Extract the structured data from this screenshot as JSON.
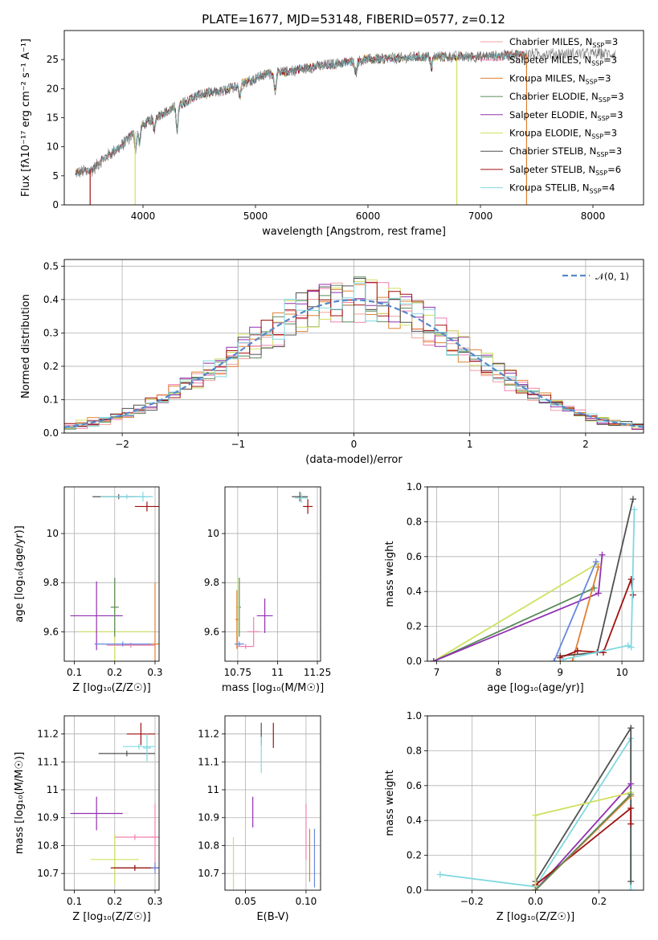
{
  "figure_title": "PLATE=1677, MJD=53148, FIBERID=0577, z=0.12",
  "colors": {
    "chabrier_miles": "#f0a0a0",
    "salpeter_miles": "#f080b0",
    "kroupa_miles": "#e08030",
    "chabrier_elodie": "#5a8a5a",
    "salpeter_elodie": "#9030b0",
    "kroupa_elodie": "#d0e060",
    "chabrier_stelib": "#505050",
    "salpeter_stelib": "#a01010",
    "kroupa_stelib": "#80d8e0",
    "gaussian": "#5588cc",
    "blue_extra": "#6688dd"
  },
  "chart_data": [
    {
      "id": "spectrum",
      "type": "line",
      "title": "PLATE=1677, MJD=53148, FIBERID=0577, z=0.12",
      "xlabel": "wavelength [Angstrom, rest frame]",
      "ylabel": "Flux [fλ10⁻¹⁷ erg cm⁻² s⁻¹ A⁻¹]",
      "xlim": [
        3300,
        8450
      ],
      "ylim": [
        0,
        30
      ],
      "xticks": [
        "4000",
        "5000",
        "6000",
        "7000",
        "8000"
      ],
      "yticks": [
        "0",
        "5",
        "10",
        "15",
        "20",
        "25"
      ],
      "legend_position": "top-right",
      "legend": [
        "Chabrier MILES, N_SSP=3",
        "Salpeter MILES, N_SSP=3",
        "Kroupa MILES, N_SSP=3",
        "Chabrier ELODIE, N_SSP=3",
        "Salpeter ELODIE, N_SSP=3",
        "Kroupa ELODIE, N_SSP=3",
        "Chabrier STELIB, N_SSP=3",
        "Salpeter STELIB, N_SSP=6",
        "Kroupa STELIB, N_SSP=4"
      ],
      "data_range": [
        3400,
        8200
      ],
      "continuum_points": [
        [
          3400,
          5.5
        ],
        [
          3550,
          6
        ],
        [
          3650,
          8
        ],
        [
          3800,
          10
        ],
        [
          3950,
          13
        ],
        [
          4100,
          15
        ],
        [
          4300,
          17
        ],
        [
          4500,
          19
        ],
        [
          4700,
          19.5
        ],
        [
          4900,
          21
        ],
        [
          5100,
          22.5
        ],
        [
          5300,
          23
        ],
        [
          5600,
          24
        ],
        [
          6000,
          25
        ],
        [
          6500,
          25.5
        ],
        [
          7000,
          25.5
        ],
        [
          7500,
          26
        ],
        [
          8000,
          26
        ],
        [
          8200,
          26
        ]
      ],
      "absorption_lines": [
        [
          3934,
          3
        ],
        [
          3968,
          2.5
        ],
        [
          4101,
          2
        ],
        [
          4304,
          4
        ],
        [
          4861,
          2
        ],
        [
          5175,
          3
        ],
        [
          5893,
          2
        ],
        [
          6563,
          2
        ]
      ],
      "model_dropouts": [
        {
          "x": 3530,
          "series": "Salpeter STELIB"
        },
        {
          "x": 3930,
          "series": "Kroupa ELODIE"
        },
        {
          "x": 6790,
          "series": "Kroupa ELODIE"
        },
        {
          "x": 7410,
          "series": "Kroupa MILES"
        }
      ]
    },
    {
      "id": "residuals",
      "type": "histogram",
      "xlabel": "(data-model)/error",
      "ylabel": "Normed distribution",
      "xlim": [
        -2.5,
        2.5
      ],
      "ylim": [
        0,
        0.52
      ],
      "xticks": [
        "−2",
        "−1",
        "0",
        "1",
        "2"
      ],
      "yticks": [
        "0.0",
        "0.1",
        "0.2",
        "0.3",
        "0.4",
        "0.5"
      ],
      "bin_width": 0.1,
      "legend": [
        "𝒩(0, 1)"
      ],
      "legend_position": "top-right",
      "gaussian": {
        "mean": 0,
        "sigma": 1
      }
    },
    {
      "id": "age_vs_Z",
      "type": "errorbar",
      "xlabel": "Z [log₁₀(Z/Z☉)]",
      "ylabel": "age  [log₁₀(age/yr)]",
      "xlim": [
        0.075,
        0.31
      ],
      "ylim": [
        9.48,
        10.19
      ],
      "xticks": [
        0.1,
        0.2,
        0.3
      ],
      "yticks": [
        9.6,
        9.8,
        10.0
      ],
      "points": [
        {
          "x": 0.21,
          "y": 10.15,
          "xerr": 0.065,
          "yerr": 0.01,
          "series": "chabrier_stelib"
        },
        {
          "x": 0.23,
          "y": 10.15,
          "xerr": 0.065,
          "yerr": 0.01,
          "series": "kroupa_stelib"
        },
        {
          "x": 0.27,
          "y": 10.15,
          "xerr": 0.02,
          "yerr": 0.02,
          "series": "kroupa_stelib"
        },
        {
          "x": 0.28,
          "y": 10.11,
          "xerr": 0.03,
          "yerr": 0.02,
          "series": "salpeter_stelib"
        },
        {
          "x": 0.2,
          "y": 9.6,
          "xerr": 0.09,
          "yerr": 0.2,
          "series": "kroupa_elodie"
        },
        {
          "x": 0.155,
          "y": 9.665,
          "xerr": 0.065,
          "yerr": 0.14,
          "series": "salpeter_elodie"
        },
        {
          "x": 0.3,
          "y": 9.55,
          "xerr": 0.075,
          "yerr": 0.25,
          "series": "kroupa_miles"
        },
        {
          "x": 0.24,
          "y": 9.545,
          "xerr": 0.06,
          "yerr": 0.01,
          "series": "salpeter_miles"
        },
        {
          "x": 0.22,
          "y": 9.55,
          "xerr": 0.07,
          "yerr": 0.01,
          "series": "blue_extra"
        },
        {
          "x": 0.2,
          "y": 9.7,
          "xerr": 0.01,
          "yerr": 0.12,
          "series": "chabrier_elodie"
        }
      ]
    },
    {
      "id": "age_vs_mass",
      "type": "errorbar",
      "xlabel": "mass [log₁₀(M/M☉)]",
      "xlim": [
        10.67,
        11.27
      ],
      "ylim": [
        9.48,
        10.19
      ],
      "xticks": [
        10.75,
        11.0,
        11.25
      ],
      "yticks": [
        9.6,
        9.8,
        10.0
      ],
      "points": [
        {
          "x": 11.14,
          "y": 10.15,
          "xerr": 0.05,
          "yerr": 0.02,
          "series": "chabrier_stelib"
        },
        {
          "x": 11.15,
          "y": 10.145,
          "xerr": 0.04,
          "yerr": 0.02,
          "series": "kroupa_stelib"
        },
        {
          "x": 11.19,
          "y": 10.11,
          "xerr": 0.03,
          "yerr": 0.03,
          "series": "salpeter_stelib"
        },
        {
          "x": 10.92,
          "y": 9.665,
          "xerr": 0.05,
          "yerr": 0.07,
          "series": "salpeter_elodie"
        },
        {
          "x": 10.85,
          "y": 9.6,
          "xerr": 0.04,
          "yerr": 0.06,
          "series": "salpeter_miles"
        },
        {
          "x": 10.76,
          "y": 9.7,
          "xerr": 0.01,
          "yerr": 0.12,
          "series": "chabrier_elodie"
        },
        {
          "x": 10.75,
          "y": 9.7,
          "xerr": 0.01,
          "yerr": 0.12,
          "series": "kroupa_elodie"
        },
        {
          "x": 10.745,
          "y": 9.65,
          "xerr": 0.01,
          "yerr": 0.12,
          "series": "kroupa_miles"
        },
        {
          "x": 10.76,
          "y": 9.55,
          "xerr": 0.03,
          "yerr": 0.01,
          "series": "blue_extra"
        },
        {
          "x": 10.8,
          "y": 9.54,
          "xerr": 0.05,
          "yerr": 0.01,
          "series": "salpeter_miles"
        }
      ]
    },
    {
      "id": "weight_vs_age",
      "type": "line",
      "xlabel": "age  [log₁₀(age/yr)]",
      "ylabel": "mass weight",
      "xlim": [
        6.85,
        10.35
      ],
      "ylim": [
        0,
        1
      ],
      "xticks": [
        7,
        8,
        9,
        10
      ],
      "yticks": [
        0.0,
        0.2,
        0.4,
        0.6,
        0.8,
        1.0
      ],
      "series": [
        {
          "name": "kroupa_elodie",
          "x": [
            6.95,
            9.6
          ],
          "y": [
            0.0,
            0.56
          ]
        },
        {
          "name": "chabrier_elodie",
          "x": [
            6.95,
            9.55
          ],
          "y": [
            0.0,
            0.42
          ]
        },
        {
          "name": "salpeter_elodie",
          "x": [
            6.95,
            9.62,
            9.68
          ],
          "y": [
            0.0,
            0.39,
            0.61
          ]
        },
        {
          "name": "blue_extra",
          "x": [
            8.9,
            9.58
          ],
          "y": [
            0.0,
            0.57
          ]
        },
        {
          "name": "kroupa_miles",
          "x": [
            9.2,
            9.62
          ],
          "y": [
            0.0,
            0.54
          ]
        },
        {
          "name": "chabrier_stelib",
          "x": [
            9.0,
            9.6,
            10.18
          ],
          "y": [
            0.03,
            0.05,
            0.93
          ]
        },
        {
          "name": "salpeter_stelib",
          "x": [
            9.0,
            9.28,
            9.7,
            10.15,
            10.18
          ],
          "y": [
            0.02,
            0.06,
            0.05,
            0.47,
            0.38
          ]
        },
        {
          "name": "kroupa_stelib",
          "x": [
            9.05,
            10.1,
            10.15,
            10.2
          ],
          "y": [
            0.01,
            0.09,
            0.08,
            0.87
          ]
        }
      ]
    },
    {
      "id": "mass_vs_Z",
      "type": "errorbar",
      "xlabel": "Z [log₁₀(Z/Z☉)]",
      "ylabel": "mass [log₁₀(M/M☉)]",
      "xlim": [
        0.075,
        0.31
      ],
      "ylim": [
        10.64,
        11.265
      ],
      "xticks": [
        0.1,
        0.2,
        0.3
      ],
      "yticks": [
        10.7,
        10.8,
        10.9,
        11.0,
        11.1,
        11.2
      ],
      "points": [
        {
          "x": 0.265,
          "y": 11.2,
          "xerr": 0.035,
          "yerr": 0.04,
          "series": "salpeter_stelib"
        },
        {
          "x": 0.23,
          "y": 11.13,
          "xerr": 0.07,
          "yerr": 0.01,
          "series": "chabrier_stelib"
        },
        {
          "x": 0.26,
          "y": 11.155,
          "xerr": 0.04,
          "yerr": 0.01,
          "series": "kroupa_stelib"
        },
        {
          "x": 0.28,
          "y": 11.15,
          "xerr": 0.01,
          "yerr": 0.05,
          "series": "kroupa_stelib"
        },
        {
          "x": 0.155,
          "y": 10.915,
          "xerr": 0.065,
          "yerr": 0.06,
          "series": "salpeter_elodie"
        },
        {
          "x": 0.3,
          "y": 10.83,
          "xerr": 0.01,
          "yerr": 0.12,
          "series": "salpeter_miles"
        },
        {
          "x": 0.25,
          "y": 10.83,
          "xerr": 0.05,
          "yerr": 0.01,
          "series": "salpeter_miles"
        },
        {
          "x": 0.2,
          "y": 10.75,
          "xerr": 0.06,
          "yerr": 0.09,
          "series": "kroupa_elodie"
        },
        {
          "x": 0.25,
          "y": 10.72,
          "xerr": 0.05,
          "yerr": 0.01,
          "series": "chabrier_elodie"
        },
        {
          "x": 0.25,
          "y": 10.72,
          "xerr": 0.06,
          "yerr": 0.01,
          "series": "salpeter_stelib"
        },
        {
          "x": 0.3,
          "y": 10.72,
          "xerr": 0.01,
          "yerr": 0.02,
          "series": "blue_extra"
        }
      ]
    },
    {
      "id": "mass_vs_ebv",
      "type": "errorbar",
      "xlabel": "E(B-V)",
      "xlim": [
        0.033,
        0.112
      ],
      "ylim": [
        10.64,
        11.265
      ],
      "xticks": [
        0.05,
        0.1
      ],
      "xtick_labels": [
        "0.05",
        "0.10"
      ],
      "yticks": [
        10.7,
        10.8,
        10.9,
        11.0,
        11.1,
        11.2
      ],
      "points": [
        {
          "x": 0.063,
          "y": 11.2,
          "yerr": 0.04,
          "series": "chabrier_stelib"
        },
        {
          "x": 0.073,
          "y": 11.195,
          "yerr": 0.045,
          "series": "salpeter_stelib"
        },
        {
          "x": 0.063,
          "y": 11.125,
          "yerr": 0.065,
          "series": "kroupa_stelib"
        },
        {
          "x": 0.056,
          "y": 10.92,
          "yerr": 0.055,
          "series": "salpeter_elodie"
        },
        {
          "x": 0.1,
          "y": 10.85,
          "yerr": 0.1,
          "series": "salpeter_miles"
        },
        {
          "x": 0.103,
          "y": 10.765,
          "yerr": 0.095,
          "series": "kroupa_miles"
        },
        {
          "x": 0.107,
          "y": 10.755,
          "yerr": 0.105,
          "series": "blue_extra"
        },
        {
          "x": 0.04,
          "y": 10.73,
          "yerr": 0.1,
          "series": "kroupa_elodie"
        }
      ]
    },
    {
      "id": "weight_vs_Z",
      "type": "line",
      "xlabel": "Z [log₁₀(Z/Z☉)]",
      "ylabel": "mass weight",
      "xlim": [
        -0.34,
        0.34
      ],
      "ylim": [
        0,
        1
      ],
      "xticks": [
        -0.2,
        0.0,
        0.2
      ],
      "xtick_labels": [
        "−0.2",
        "0.0",
        "0.2"
      ],
      "yticks": [
        0.0,
        0.2,
        0.4,
        0.6,
        0.8,
        1.0
      ],
      "series": [
        {
          "name": "kroupa_stelib",
          "x": [
            -0.3,
            0.0,
            0.3,
            0.3
          ],
          "y": [
            0.09,
            0.02,
            0.87,
            0.0
          ]
        },
        {
          "name": "chabrier_stelib",
          "x": [
            0.0,
            0.3,
            0.3
          ],
          "y": [
            0.05,
            0.93,
            0.05
          ]
        },
        {
          "name": "salpeter_elodie",
          "x": [
            0.0,
            0.3
          ],
          "y": [
            0.0,
            0.61
          ]
        },
        {
          "name": "salpeter_stelib",
          "x": [
            0.0,
            0.3,
            0.3
          ],
          "y": [
            0.03,
            0.47,
            0.38
          ]
        },
        {
          "name": "kroupa_elodie",
          "x": [
            0.0,
            0.0,
            0.3
          ],
          "y": [
            0.0,
            0.43,
            0.56
          ]
        },
        {
          "name": "kroupa_miles",
          "x": [
            0.0,
            0.3
          ],
          "y": [
            0.0,
            0.54
          ]
        },
        {
          "name": "chabrier_elodie",
          "x": [
            0.0,
            0.3
          ],
          "y": [
            0.0,
            0.55
          ]
        }
      ]
    }
  ]
}
